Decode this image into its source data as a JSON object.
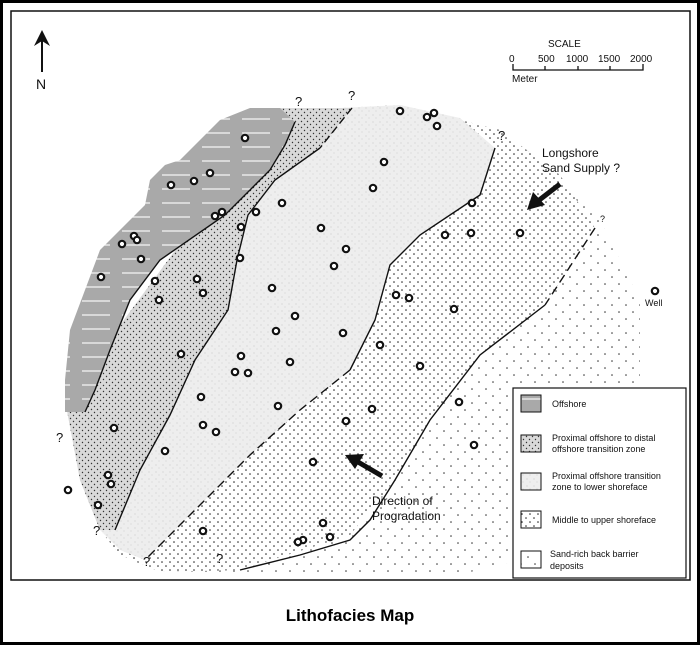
{
  "title": "Lithofacies Map",
  "north_label": "N",
  "scale": {
    "title": "SCALE",
    "ticks": [
      "0",
      "500",
      "1000",
      "1500",
      "2000"
    ],
    "unit": "Meter"
  },
  "annotations": {
    "longshore_1": "Longshore",
    "longshore_2": "Sand Supply ?",
    "progradation_1": "Direction of",
    "progradation_2": "Progradation",
    "well": "Well",
    "uncertain": "?"
  },
  "legend": [
    {
      "lines": [
        "Offshore"
      ],
      "pattern": "horizontal-lines-gray"
    },
    {
      "lines": [
        "Proximal offshore to distal",
        "offshore transition zone"
      ],
      "pattern": "dense-dots-gray"
    },
    {
      "lines": [
        "Proximal offshore transition",
        "zone to lower shoreface"
      ],
      "pattern": "light-gray"
    },
    {
      "lines": [
        "Middle to upper shoreface"
      ],
      "pattern": "dots-white"
    },
    {
      "lines": [
        "Sand-rich back barrier",
        "deposits"
      ],
      "pattern": "sparse-dots-white"
    }
  ],
  "colors": {
    "offshore": "#a9a9a9",
    "transition": "#d9d9d9",
    "lower_shoreface": "#eeeeee",
    "line": "#111111"
  }
}
